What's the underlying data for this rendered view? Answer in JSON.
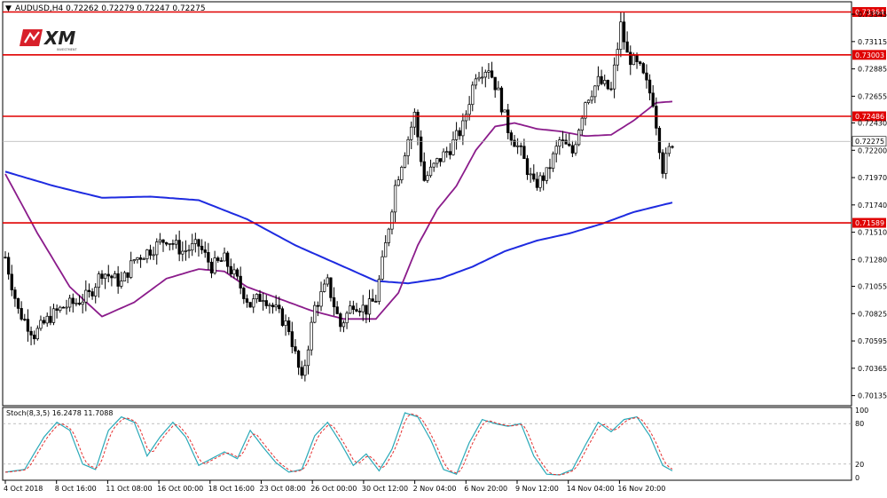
{
  "header": {
    "arrow": "▼",
    "text": "AUDUSD,H4  0.72262 0.72279 0.72247 0.72275"
  },
  "logo": {
    "text": "XM",
    "sub": "INVESTMENT"
  },
  "indicator": {
    "label": "Stoch(8,3,5) 16.2478 11.7088"
  },
  "colors": {
    "bull": "#000000",
    "bear": "#000000",
    "ma_fast": "#8B1C8B",
    "ma_slow": "#1E2BE0",
    "level": "#E00000",
    "stoch_main": "#2AA9B8",
    "stoch_signal": "#E53030",
    "grid": "#999999"
  },
  "chart_data": {
    "type": "candlestick",
    "symbol": "AUDUSD",
    "timeframe": "H4",
    "last_close": "0.72275",
    "ylim": [
      0.7005,
      0.7345
    ],
    "y_ticks": [
      "0.73345",
      "0.73115",
      "0.72885",
      "0.72655",
      "0.72430",
      "0.72200",
      "0.71970",
      "0.71740",
      "0.71510",
      "0.71280",
      "0.71055",
      "0.70825",
      "0.70595",
      "0.70365",
      "0.70135"
    ],
    "x_ticks": [
      "4 Oct 2018",
      "8 Oct 16:00",
      "11 Oct 08:00",
      "16 Oct 00:00",
      "18 Oct 16:00",
      "23 Oct 08:00",
      "26 Oct 00:00",
      "30 Oct 12:00",
      "2 Nov 04:00",
      "6 Nov 20:00",
      "9 Nov 12:00",
      "14 Nov 04:00",
      "16 Nov 20:00"
    ],
    "levels": [
      "0.73364",
      "0.73003",
      "0.72486",
      "0.71589"
    ],
    "close_anchors": [
      [
        0,
        0.713
      ],
      [
        4,
        0.7085
      ],
      [
        9,
        0.7065
      ],
      [
        14,
        0.708
      ],
      [
        18,
        0.7088
      ],
      [
        22,
        0.7092
      ],
      [
        26,
        0.7098
      ],
      [
        30,
        0.7118
      ],
      [
        36,
        0.7108
      ],
      [
        40,
        0.7128
      ],
      [
        46,
        0.7138
      ],
      [
        50,
        0.7146
      ],
      [
        55,
        0.7135
      ],
      [
        60,
        0.714
      ],
      [
        64,
        0.7122
      ],
      [
        68,
        0.7128
      ],
      [
        72,
        0.711
      ],
      [
        76,
        0.709
      ],
      [
        80,
        0.7098
      ],
      [
        84,
        0.7085
      ],
      [
        88,
        0.707
      ],
      [
        92,
        0.7025
      ],
      [
        96,
        0.7088
      ],
      [
        100,
        0.7108
      ],
      [
        104,
        0.7072
      ],
      [
        108,
        0.7092
      ],
      [
        112,
        0.7086
      ],
      [
        115,
        0.7095
      ],
      [
        118,
        0.714
      ],
      [
        121,
        0.719
      ],
      [
        124,
        0.722
      ],
      [
        127,
        0.725
      ],
      [
        130,
        0.7195
      ],
      [
        134,
        0.721
      ],
      [
        138,
        0.7222
      ],
      [
        142,
        0.724
      ],
      [
        146,
        0.7285
      ],
      [
        150,
        0.729
      ],
      [
        153,
        0.7268
      ],
      [
        156,
        0.7238
      ],
      [
        160,
        0.7218
      ],
      [
        164,
        0.719
      ],
      [
        168,
        0.72
      ],
      [
        172,
        0.7228
      ],
      [
        176,
        0.7218
      ],
      [
        180,
        0.7262
      ],
      [
        184,
        0.7278
      ],
      [
        188,
        0.727
      ],
      [
        191,
        0.7325
      ],
      [
        193,
        0.73
      ],
      [
        197,
        0.7288
      ],
      [
        201,
        0.7262
      ],
      [
        204,
        0.7205
      ],
      [
        206,
        0.722
      ],
      [
        207,
        0.72275
      ]
    ],
    "ma_slow_anchors": [
      [
        0,
        0.7202
      ],
      [
        15,
        0.719
      ],
      [
        30,
        0.718
      ],
      [
        45,
        0.7181
      ],
      [
        60,
        0.7178
      ],
      [
        75,
        0.7162
      ],
      [
        90,
        0.714
      ],
      [
        105,
        0.7122
      ],
      [
        115,
        0.711
      ],
      [
        125,
        0.7108
      ],
      [
        135,
        0.7112
      ],
      [
        145,
        0.7122
      ],
      [
        155,
        0.7135
      ],
      [
        165,
        0.7144
      ],
      [
        175,
        0.715
      ],
      [
        185,
        0.7158
      ],
      [
        195,
        0.7168
      ],
      [
        207,
        0.7176
      ]
    ],
    "ma_fast_anchors": [
      [
        0,
        0.72
      ],
      [
        10,
        0.715
      ],
      [
        20,
        0.7105
      ],
      [
        30,
        0.708
      ],
      [
        40,
        0.7092
      ],
      [
        50,
        0.7112
      ],
      [
        60,
        0.712
      ],
      [
        68,
        0.7118
      ],
      [
        75,
        0.7105
      ],
      [
        85,
        0.7095
      ],
      [
        95,
        0.7085
      ],
      [
        105,
        0.7078
      ],
      [
        115,
        0.7078
      ],
      [
        122,
        0.71
      ],
      [
        128,
        0.714
      ],
      [
        134,
        0.717
      ],
      [
        140,
        0.719
      ],
      [
        146,
        0.722
      ],
      [
        152,
        0.724
      ],
      [
        158,
        0.7243
      ],
      [
        165,
        0.7238
      ],
      [
        172,
        0.7236
      ],
      [
        180,
        0.7232
      ],
      [
        188,
        0.7233
      ],
      [
        195,
        0.7245
      ],
      [
        202,
        0.726
      ],
      [
        207,
        0.7261
      ]
    ],
    "stoch_anchors": [
      [
        0,
        8
      ],
      [
        6,
        12
      ],
      [
        12,
        60
      ],
      [
        16,
        82
      ],
      [
        20,
        70
      ],
      [
        24,
        20
      ],
      [
        28,
        12
      ],
      [
        32,
        70
      ],
      [
        36,
        90
      ],
      [
        40,
        82
      ],
      [
        44,
        32
      ],
      [
        48,
        60
      ],
      [
        52,
        82
      ],
      [
        56,
        60
      ],
      [
        60,
        18
      ],
      [
        64,
        28
      ],
      [
        68,
        38
      ],
      [
        72,
        28
      ],
      [
        76,
        70
      ],
      [
        80,
        45
      ],
      [
        84,
        22
      ],
      [
        88,
        8
      ],
      [
        92,
        12
      ],
      [
        96,
        62
      ],
      [
        100,
        82
      ],
      [
        104,
        52
      ],
      [
        108,
        18
      ],
      [
        112,
        35
      ],
      [
        116,
        10
      ],
      [
        120,
        42
      ],
      [
        124,
        96
      ],
      [
        128,
        90
      ],
      [
        132,
        56
      ],
      [
        136,
        12
      ],
      [
        140,
        5
      ],
      [
        144,
        52
      ],
      [
        148,
        86
      ],
      [
        152,
        80
      ],
      [
        156,
        76
      ],
      [
        160,
        80
      ],
      [
        164,
        32
      ],
      [
        168,
        5
      ],
      [
        172,
        4
      ],
      [
        176,
        12
      ],
      [
        180,
        48
      ],
      [
        184,
        82
      ],
      [
        188,
        68
      ],
      [
        192,
        86
      ],
      [
        196,
        90
      ],
      [
        200,
        62
      ],
      [
        204,
        18
      ],
      [
        207,
        10
      ]
    ]
  }
}
